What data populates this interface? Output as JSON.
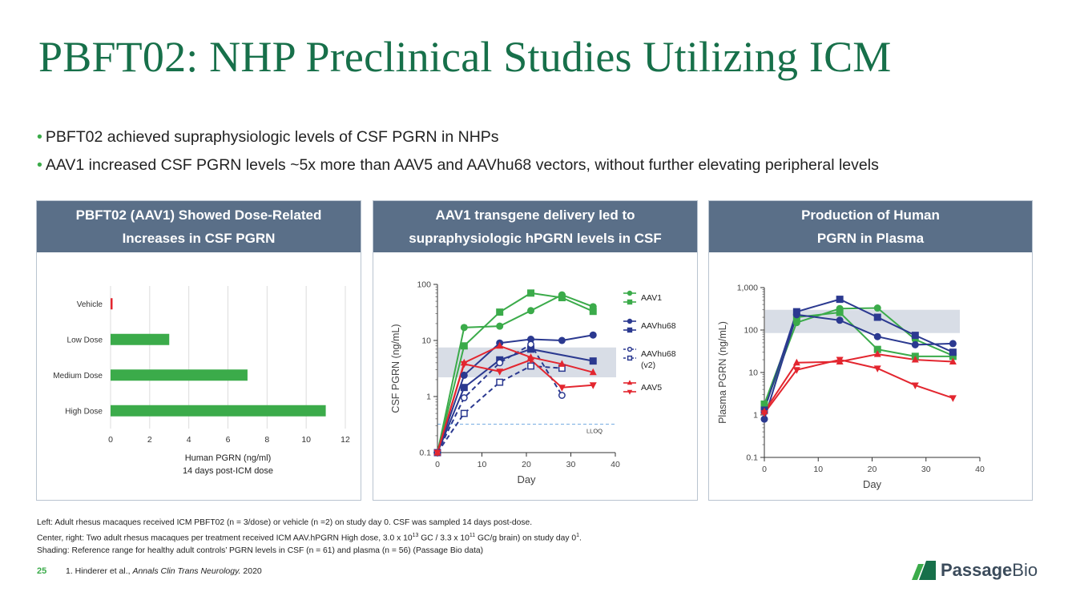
{
  "title": "PBFT02: NHP Preclinical Studies Utilizing ICM",
  "bullets": [
    "PBFT02 achieved supraphysiologic levels of CSF PGRN in NHPs",
    "AAV1 increased CSF PGRN levels ~5x more than AAV5 and AAVhu68 vectors, without further elevating peripheral levels"
  ],
  "panels": {
    "left": {
      "header_line1": "PBFT02 (AAV1) Showed Dose-Related",
      "header_line2": "Increases in CSF PGRN"
    },
    "center": {
      "header_line1": "AAV1 transgene delivery led to",
      "header_line2": "supraphysiologic  hPGRN levels in CSF"
    },
    "right": {
      "header_line1": "Production  of Human",
      "header_line2": "PGRN in Plasma"
    }
  },
  "footnotes": {
    "line1": "Left:  Adult rhesus macaques received ICM PBFT02  (n = 3/dose) or vehicle (n =2) on study day 0. CSF was sampled 14 days post-dose.",
    "line2_a": "Center,  right: Two adult rhesus macaques per treatment  received ICM AAV.hPGRN  High dose, 3.0 x 10",
    "line2_sup1": "13",
    "line2_b": " GC / 3.3 x 10",
    "line2_sup2": "11",
    "line2_c": " GC/g brain) on study day 0",
    "line2_sup3": "1",
    "line2_d": ".",
    "line3": "Shading: Reference  range for healthy adult controls’ PGRN levels in CSF (n = 61) and plasma (n = 56) (Passage Bio data)"
  },
  "page_number": "25",
  "reference": {
    "prefix": "1. Hinderer et al., ",
    "journal": "Annals Clin Trans Neurology.",
    "year": " 2020"
  },
  "logo": {
    "word1": "Passage",
    "word2": "Bio"
  },
  "colors": {
    "green": "#3bab4a",
    "navy": "#2b3990",
    "red": "#e3262f",
    "header": "#5a6f88",
    "title": "#17704a"
  },
  "chart_data": [
    {
      "type": "bar",
      "orientation": "horizontal",
      "categories": [
        "Vehicle",
        "Low Dose",
        "Medium Dose",
        "High Dose"
      ],
      "values": [
        0.1,
        3,
        7,
        11
      ],
      "xlim": [
        0,
        12
      ],
      "xticks": [
        0,
        2,
        4,
        6,
        8,
        10,
        12
      ],
      "xlabel": "Human PGRN (ng/ml)",
      "xlabel2": "14 days post-ICM dose",
      "colors": [
        "#e3262f",
        "#3bab4a",
        "#3bab4a",
        "#3bab4a"
      ]
    },
    {
      "type": "line",
      "yscale": "log",
      "xlabel": "Day",
      "ylabel": "CSF PGRN (ng/mL)",
      "xlim": [
        0,
        40
      ],
      "ylim": [
        0.1,
        100
      ],
      "xticks": [
        "0",
        "10",
        "20",
        "30",
        "40"
      ],
      "yticks": [
        "0.1",
        "1",
        "10",
        "100"
      ],
      "reference_range": [
        2.2,
        7.5
      ],
      "lloq": 0.32,
      "lloq_label": "LLOQ",
      "legend": [
        {
          "label": "AAV1",
          "color": "#3bab4a",
          "markers": [
            "circle",
            "square"
          ]
        },
        {
          "label": "AAVhu68",
          "color": "#2b3990",
          "markers": [
            "circle",
            "square"
          ]
        },
        {
          "label": "AAVhu68",
          "label2": "(v2)",
          "color": "#2b3990",
          "markers": [
            "open-circle",
            "open-square"
          ]
        },
        {
          "label": "AAV5",
          "color": "#e3262f",
          "markers": [
            "triangle-up",
            "triangle-down"
          ]
        }
      ],
      "series": [
        {
          "name": "AAV1 circle",
          "color": "#3bab4a",
          "marker": "circle",
          "dashed": false,
          "x": [
            0,
            6,
            14,
            21,
            28,
            35
          ],
          "y": [
            0.1,
            17,
            18,
            34,
            65,
            40
          ]
        },
        {
          "name": "AAV1 square",
          "color": "#3bab4a",
          "marker": "square",
          "dashed": false,
          "x": [
            0,
            6,
            14,
            21,
            28,
            35
          ],
          "y": [
            0.1,
            8,
            32,
            70,
            58,
            33
          ]
        },
        {
          "name": "AAVhu68 circle",
          "color": "#2b3990",
          "marker": "circle",
          "dashed": false,
          "x": [
            0,
            6,
            14,
            21,
            28,
            35
          ],
          "y": [
            0.1,
            2.4,
            9,
            10.5,
            10,
            12.5
          ]
        },
        {
          "name": "AAVhu68 square",
          "color": "#2b3990",
          "marker": "square",
          "dashed": false,
          "x": [
            0,
            6,
            14,
            21,
            35
          ],
          "y": [
            0.1,
            1.45,
            4.5,
            7,
            4.3
          ]
        },
        {
          "name": "AAVhu68 (v2) circle",
          "color": "#2b3990",
          "marker": "open-circle",
          "dashed": true,
          "x": [
            0,
            6,
            14,
            21,
            28
          ],
          "y": [
            0.1,
            0.95,
            4,
            8.5,
            1.05
          ]
        },
        {
          "name": "AAVhu68 (v2) square",
          "color": "#2b3990",
          "marker": "open-square",
          "dashed": true,
          "x": [
            0,
            6,
            14,
            21,
            28
          ],
          "y": [
            0.1,
            0.5,
            1.8,
            3.5,
            3.2
          ]
        },
        {
          "name": "AAV5 up",
          "color": "#e3262f",
          "marker": "triangle-up",
          "dashed": false,
          "x": [
            0,
            6,
            14,
            21,
            28,
            35
          ],
          "y": [
            0.1,
            4,
            8,
            5,
            3.8,
            2.7
          ]
        },
        {
          "name": "AAV5 down",
          "color": "#e3262f",
          "marker": "triangle-down",
          "dashed": false,
          "x": [
            0,
            6,
            14,
            21,
            28,
            35
          ],
          "y": [
            0.1,
            3.8,
            2.8,
            4.5,
            1.45,
            1.6
          ]
        }
      ]
    },
    {
      "type": "line",
      "yscale": "log",
      "xlabel": "Day",
      "ylabel": "Plasma PGRN (ng/mL)",
      "xlim": [
        0,
        40
      ],
      "ylim": [
        0.1,
        1000
      ],
      "xticks": [
        "0",
        "10",
        "20",
        "30",
        "40"
      ],
      "yticks": [
        "0.1",
        "1",
        "10",
        "100",
        "1,000"
      ],
      "reference_range": [
        85,
        300
      ],
      "series": [
        {
          "name": "AAV1 circle",
          "color": "#3bab4a",
          "marker": "circle",
          "dashed": false,
          "x": [
            0,
            6,
            14,
            21,
            28,
            35
          ],
          "y": [
            1.5,
            150,
            320,
            330,
            60,
            25
          ]
        },
        {
          "name": "AAV1 square",
          "color": "#3bab4a",
          "marker": "square",
          "dashed": false,
          "x": [
            0,
            6,
            14,
            21,
            28,
            35
          ],
          "y": [
            1.8,
            200,
            260,
            35,
            24,
            24
          ]
        },
        {
          "name": "AAVhu68 circle",
          "color": "#2b3990",
          "marker": "circle",
          "dashed": false,
          "x": [
            0,
            6,
            14,
            21,
            28,
            35
          ],
          "y": [
            0.8,
            230,
            170,
            70,
            45,
            48
          ]
        },
        {
          "name": "AAVhu68 square",
          "color": "#2b3990",
          "marker": "square",
          "dashed": false,
          "x": [
            0,
            6,
            14,
            21,
            28,
            35
          ],
          "y": [
            1.3,
            270,
            530,
            200,
            75,
            30
          ]
        },
        {
          "name": "AAV5 up",
          "color": "#e3262f",
          "marker": "triangle-up",
          "dashed": false,
          "x": [
            0,
            6,
            14,
            21,
            28,
            35
          ],
          "y": [
            1.2,
            17,
            18,
            27,
            20,
            18
          ]
        },
        {
          "name": "AAV5 down",
          "color": "#e3262f",
          "marker": "triangle-down",
          "dashed": false,
          "x": [
            0,
            6,
            14,
            21,
            28,
            35
          ],
          "y": [
            1.1,
            11.5,
            20,
            12.5,
            5,
            2.5
          ]
        }
      ]
    }
  ]
}
